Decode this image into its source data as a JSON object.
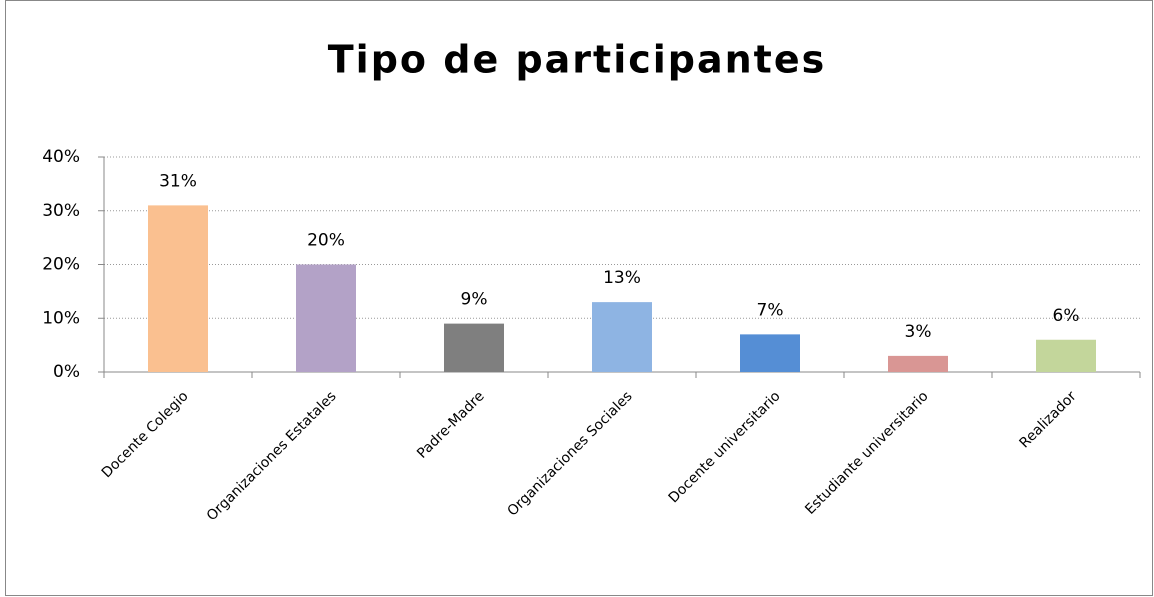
{
  "chart_data": {
    "type": "bar",
    "title": "Tipo de participantes",
    "categories": [
      "Docente Colegio",
      "Organizaciones Estatales",
      "Padre-Madre",
      "Organizaciones Sociales",
      "Docente universitario",
      "Estudiante universitario",
      "Realizador"
    ],
    "values": [
      31,
      20,
      9,
      13,
      7,
      3,
      6
    ],
    "value_labels": [
      "31%",
      "20%",
      "9%",
      "13%",
      "7%",
      "3%",
      "6%"
    ],
    "colors": [
      "#FAC090",
      "#B3A2C7",
      "#7F7F7F",
      "#8EB4E3",
      "#558ED5",
      "#D99694",
      "#C3D69B"
    ],
    "ylim": [
      0,
      40
    ],
    "yticks": [
      {
        "value": 0,
        "label": "0%"
      },
      {
        "value": 10,
        "label": "10%"
      },
      {
        "value": 20,
        "label": "20%"
      },
      {
        "value": 30,
        "label": "30%"
      },
      {
        "value": 40,
        "label": "40%"
      }
    ],
    "grid": true
  }
}
